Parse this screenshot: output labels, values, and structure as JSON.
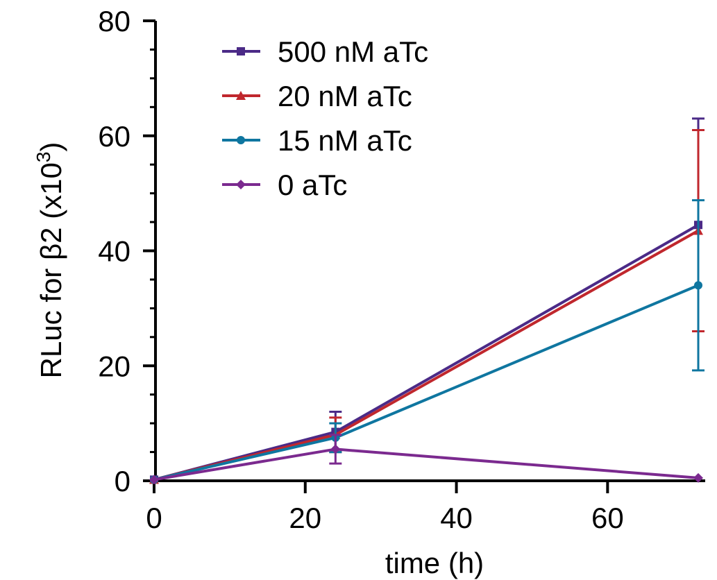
{
  "chart_data": {
    "type": "line",
    "xlabel": "time (h)",
    "ylabel_main": "RLuc for β2 (x10",
    "ylabel_sup": "3",
    "ylabel_close": ")",
    "xlim": [
      0,
      72
    ],
    "ylim": [
      0,
      80
    ],
    "x_ticks": [
      0,
      20,
      40,
      60
    ],
    "y_ticks": [
      0,
      20,
      40,
      60,
      80
    ],
    "y_minor_step": 5,
    "grid": false,
    "legend_position": "top-left",
    "x": [
      0,
      24,
      72
    ],
    "series": [
      {
        "name": "500 nM aTc",
        "color": "#4b2a87",
        "marker": "square",
        "values": [
          0.2,
          8.5,
          44.5
        ],
        "error": [
          0,
          3.5,
          18.5
        ]
      },
      {
        "name": "20 nM aTc",
        "color": "#c0272d",
        "marker": "triangle",
        "values": [
          0.2,
          8.0,
          43.5
        ],
        "error": [
          0,
          3.0,
          17.5
        ]
      },
      {
        "name": "15 nM aTc",
        "color": "#0f76a0",
        "marker": "circle",
        "values": [
          0.2,
          7.5,
          34.0
        ],
        "error": [
          0,
          2.5,
          14.8
        ]
      },
      {
        "name": "0 aTc",
        "color": "#7b2a8f",
        "marker": "diamond",
        "values": [
          0.2,
          5.5,
          0.5
        ],
        "error": [
          0,
          2.5,
          0
        ]
      }
    ]
  }
}
